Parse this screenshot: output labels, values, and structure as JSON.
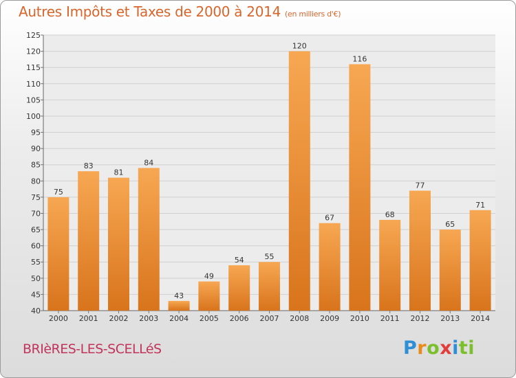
{
  "title": "Autres Impôts et Taxes de 2000 à 2014",
  "subtitle": "(en milliers d'€)",
  "town": "BRIèRES-LES-SCELLéS",
  "logo": "Proxiti",
  "colors": {
    "bar_light": "#f7a752",
    "bar_dark": "#d8741c",
    "title": "#d9652b",
    "town": "#c2345a"
  },
  "chart_data": {
    "type": "bar",
    "categories": [
      "2000",
      "2001",
      "2002",
      "2003",
      "2004",
      "2005",
      "2006",
      "2007",
      "2008",
      "2009",
      "2010",
      "2011",
      "2012",
      "2013",
      "2014"
    ],
    "values": [
      75,
      83,
      81,
      84,
      43,
      49,
      54,
      55,
      120,
      67,
      116,
      68,
      77,
      65,
      71
    ],
    "ylim": [
      40,
      125
    ],
    "yticks": [
      40,
      45,
      50,
      55,
      60,
      65,
      70,
      75,
      80,
      85,
      90,
      95,
      100,
      105,
      110,
      115,
      120,
      125
    ],
    "grid": true,
    "data_labels": true
  }
}
